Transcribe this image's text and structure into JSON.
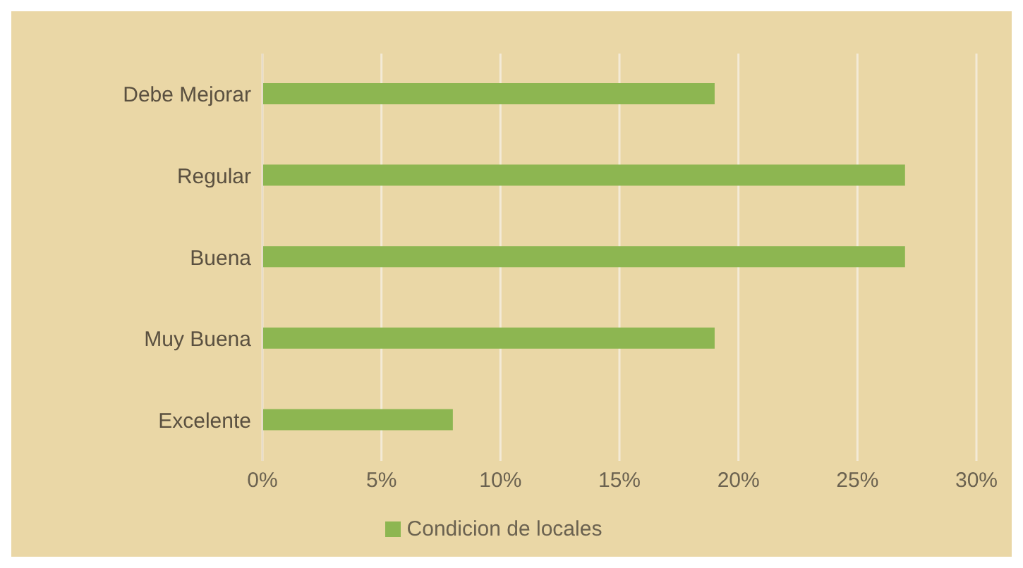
{
  "chart_data": {
    "type": "bar",
    "orientation": "horizontal",
    "categories": [
      "Debe Mejorar",
      "Regular",
      "Buena",
      "Muy Buena",
      "Excelente"
    ],
    "series": [
      {
        "name": "Condicion de locales",
        "color": "#8db651",
        "values": [
          19,
          27,
          27,
          19,
          8
        ]
      }
    ],
    "xlim": [
      0,
      30
    ],
    "xticks": [
      {
        "value": 0,
        "label": "0%"
      },
      {
        "value": 5,
        "label": "5%"
      },
      {
        "value": 10,
        "label": "10%"
      },
      {
        "value": 15,
        "label": "15%"
      },
      {
        "value": 20,
        "label": "20%"
      },
      {
        "value": 25,
        "label": "25%"
      },
      {
        "value": 30,
        "label": "30%"
      }
    ],
    "grid": "x",
    "legend": "bottom"
  }
}
